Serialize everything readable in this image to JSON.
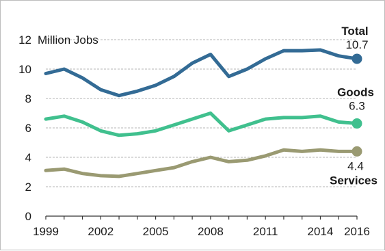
{
  "chart_data": {
    "type": "line",
    "unit_label": "Million Jobs",
    "x": [
      1999,
      2000,
      2001,
      2002,
      2003,
      2004,
      2005,
      2006,
      2007,
      2008,
      2009,
      2010,
      2011,
      2012,
      2013,
      2014,
      2015,
      2016
    ],
    "x_tick_labels": [
      "1999",
      "2002",
      "2005",
      "2008",
      "2011",
      "2014",
      "2016"
    ],
    "y_tick_labels": [
      "0",
      "2",
      "4",
      "6",
      "8",
      "10",
      "12"
    ],
    "ylim": [
      0,
      12
    ],
    "grid": true,
    "series": [
      {
        "name": "Total",
        "color": "#336b95",
        "end_label": "10.7",
        "values": [
          9.7,
          10.0,
          9.4,
          8.6,
          8.2,
          8.5,
          8.9,
          9.5,
          10.4,
          11.0,
          9.5,
          10.0,
          10.7,
          11.25,
          11.25,
          11.3,
          10.9,
          10.7
        ]
      },
      {
        "name": "Goods",
        "color": "#40c08e",
        "end_label": "6.3",
        "values": [
          6.6,
          6.8,
          6.4,
          5.8,
          5.5,
          5.6,
          5.8,
          6.2,
          6.6,
          7.0,
          5.8,
          6.2,
          6.6,
          6.7,
          6.7,
          6.8,
          6.4,
          6.3
        ]
      },
      {
        "name": "Services",
        "color": "#9a9a72",
        "end_label": "4.4",
        "values": [
          3.1,
          3.2,
          2.9,
          2.75,
          2.7,
          2.9,
          3.1,
          3.3,
          3.7,
          4.0,
          3.7,
          3.8,
          4.1,
          4.5,
          4.4,
          4.5,
          4.4,
          4.4
        ]
      }
    ]
  }
}
